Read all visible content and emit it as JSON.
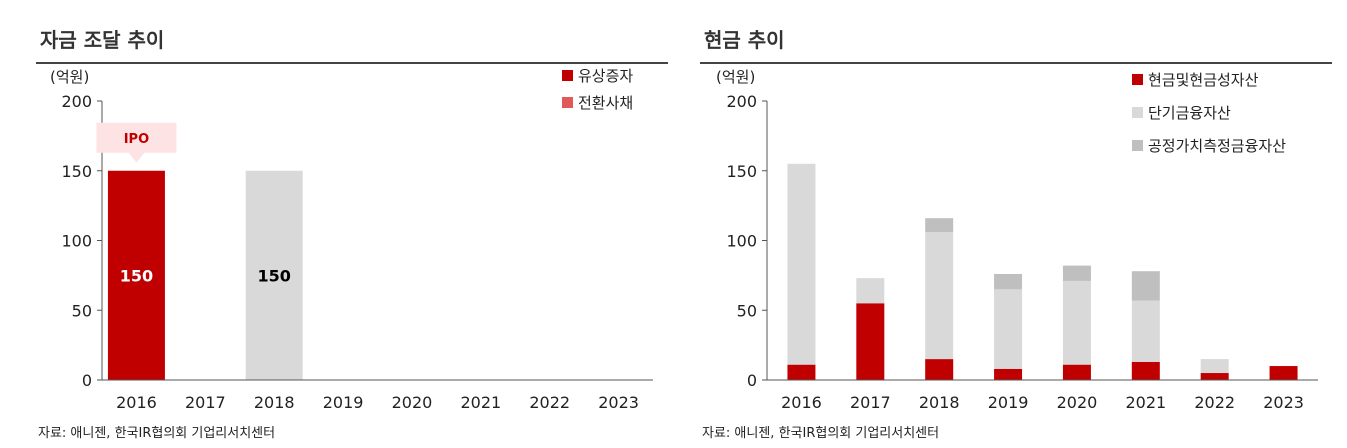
{
  "colors": {
    "red": "#c00000",
    "light_gray": "#d9d9d9",
    "mid_gray": "#bfbfbf",
    "pink": "#e05a5a",
    "ipo_bg": "#fde3e4",
    "ipo_text": "#c00000"
  },
  "chart_data": [
    {
      "type": "bar",
      "title": "자금 조달 추이",
      "unit_label": "(억원)",
      "categories": [
        "2016",
        "2017",
        "2018",
        "2019",
        "2020",
        "2021",
        "2022",
        "2023"
      ],
      "ylim": [
        0,
        200
      ],
      "yticks": [
        "0",
        "50",
        "100",
        "150",
        "200"
      ],
      "legend": [
        "유상증자",
        "전환사채"
      ],
      "legend_position": "top-right",
      "series": [
        {
          "name": "유상증자",
          "color": "#c00000",
          "values": [
            150,
            0,
            0,
            0,
            0,
            0,
            0,
            0
          ]
        },
        {
          "name": "",
          "color": "#d9d9d9",
          "values": [
            0,
            0,
            150,
            0,
            0,
            0,
            0,
            0
          ]
        }
      ],
      "data_labels": [
        {
          "category": "2016",
          "text": "150",
          "color": "#ffffff"
        },
        {
          "category": "2018",
          "text": "150",
          "color": "#000000"
        }
      ],
      "annotation": {
        "category": "2016",
        "text": "IPO"
      },
      "source": "자료: 애니젠, 한국IR협의회 기업리서치센터"
    },
    {
      "type": "bar",
      "stacked": true,
      "title": "현금 추이",
      "unit_label": "(억원)",
      "categories": [
        "2016",
        "2017",
        "2018",
        "2019",
        "2020",
        "2021",
        "2022",
        "2023"
      ],
      "ylim": [
        0,
        200
      ],
      "yticks": [
        "0",
        "50",
        "100",
        "150",
        "200"
      ],
      "legend_position": "top-right",
      "series": [
        {
          "name": "현금및현금성자산",
          "color": "#c00000",
          "values": [
            11,
            55,
            15,
            8,
            11,
            13,
            5,
            10
          ]
        },
        {
          "name": "단기금융자산",
          "color": "#d9d9d9",
          "values": [
            144,
            18,
            91,
            57,
            60,
            44,
            10,
            0
          ]
        },
        {
          "name": "공정가치측정금융자산",
          "color": "#bfbfbf",
          "values": [
            0,
            0,
            10,
            11,
            11,
            21,
            0,
            0
          ]
        }
      ],
      "source": "자료: 애니젠, 한국IR협의회 기업리서치센터"
    }
  ]
}
